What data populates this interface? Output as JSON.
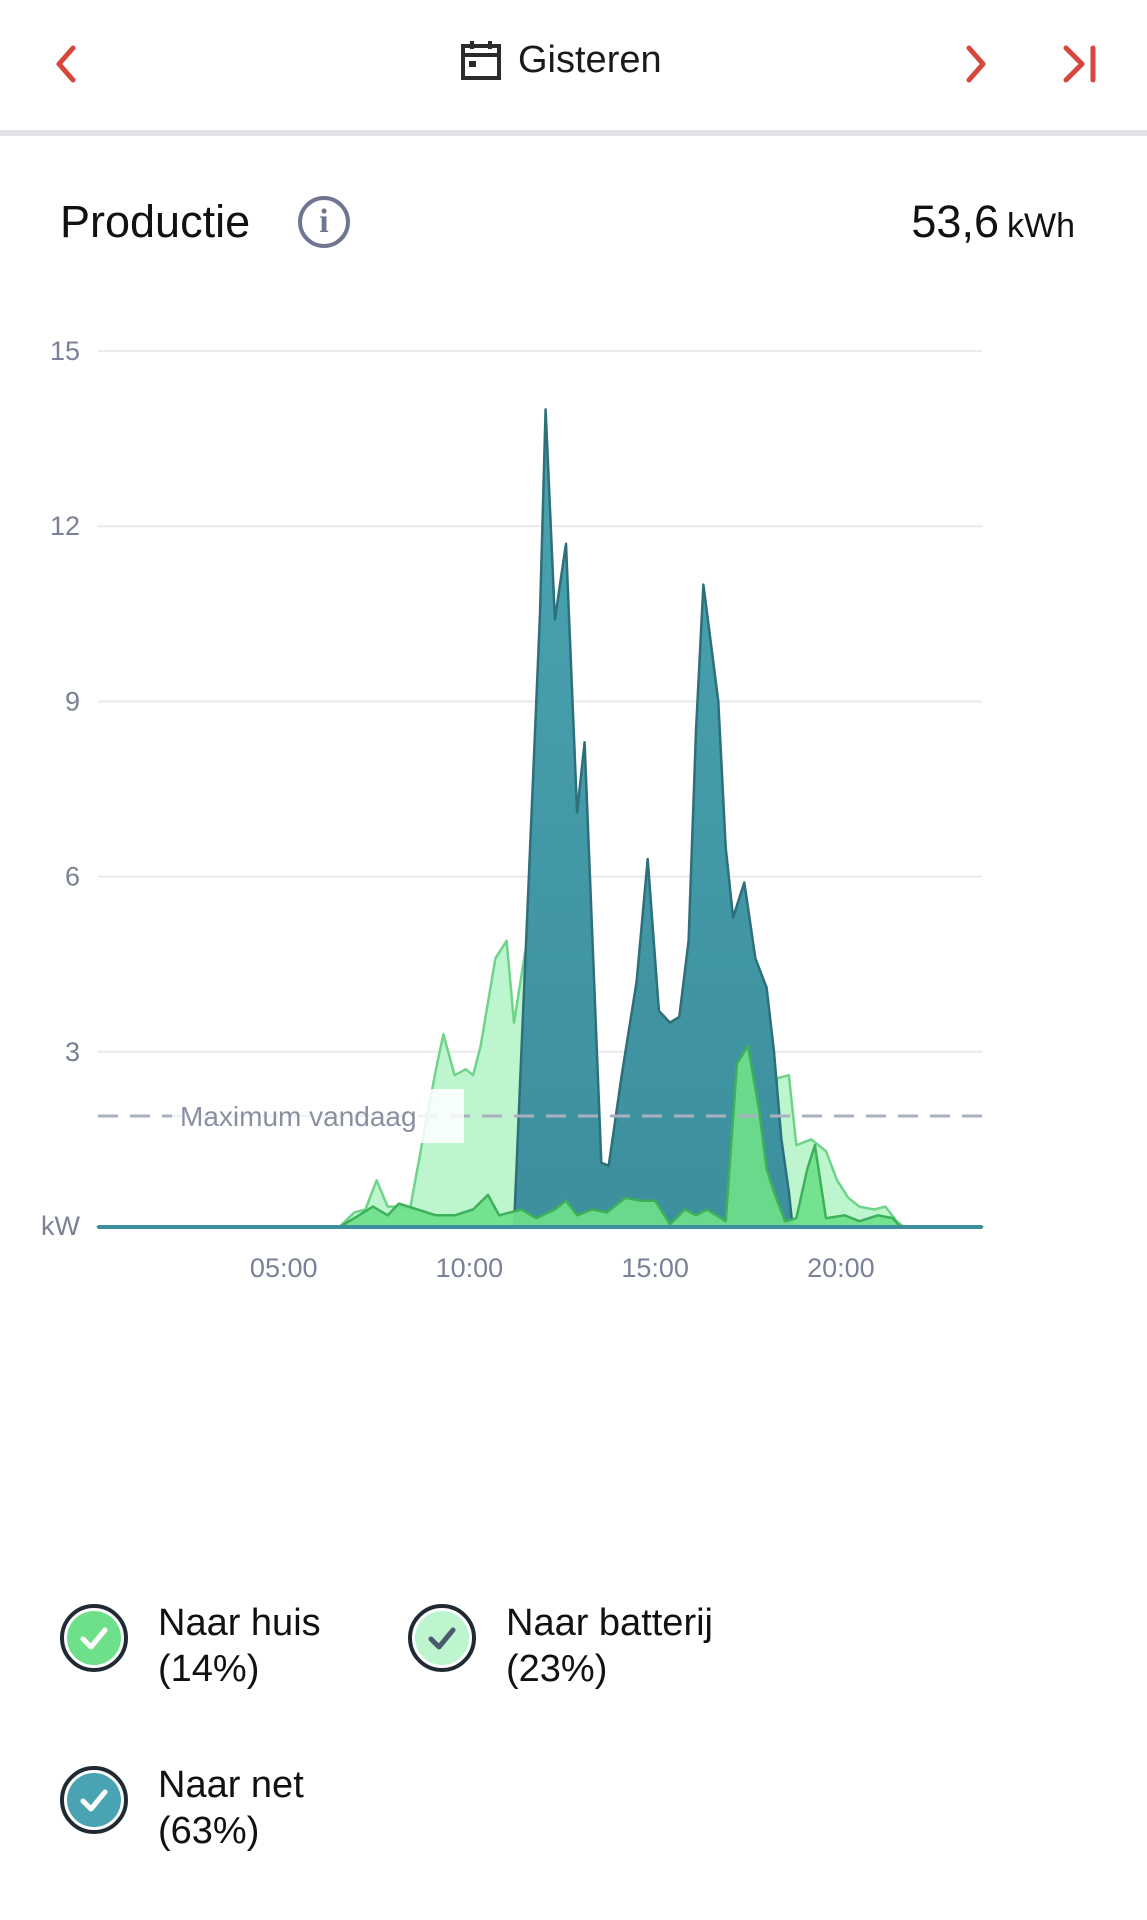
{
  "nav": {
    "date_label": "Gisteren",
    "icons": {
      "prev": "chevron-left-icon",
      "next": "chevron-right-icon",
      "last": "skip-to-end-icon",
      "calendar": "calendar-icon",
      "info": "info-icon"
    }
  },
  "header": {
    "title": "Productie",
    "info_symbol": "i",
    "total_value": "53,6",
    "total_unit": "kWh"
  },
  "colors": {
    "accent": "#d5473b",
    "grid": "#e9e9ee",
    "axis_text": "#7a8196",
    "naar_net": "#4aa3b2",
    "naar_batterij": "#bdf5cf",
    "naar_huis": "#6fe08a",
    "max_line": "#aab0bf"
  },
  "chart_data": {
    "type": "area",
    "y_unit_label": "kW",
    "ylim": [
      0,
      15
    ],
    "y_ticks": [
      15,
      12,
      9,
      6,
      3
    ],
    "x_ticks": [
      "05:00",
      "10:00",
      "15:00",
      "20:00"
    ],
    "xlim_hours": [
      0,
      23.8
    ],
    "reference_line": {
      "label": "Maximum vandaag",
      "value": 1.9
    },
    "series": [
      {
        "name": "Naar huis",
        "percent": "14%",
        "points": [
          [
            0,
            0
          ],
          [
            6.5,
            0
          ],
          [
            6.9,
            0.15
          ],
          [
            7.4,
            0.35
          ],
          [
            7.8,
            0.2
          ],
          [
            8.1,
            0.4
          ],
          [
            8.6,
            0.3
          ],
          [
            9.1,
            0.2
          ],
          [
            9.6,
            0.2
          ],
          [
            10.1,
            0.3
          ],
          [
            10.5,
            0.55
          ],
          [
            10.8,
            0.2
          ],
          [
            11.4,
            0.3
          ],
          [
            11.8,
            0.15
          ],
          [
            12.3,
            0.3
          ],
          [
            12.6,
            0.45
          ],
          [
            12.9,
            0.2
          ],
          [
            13.3,
            0.3
          ],
          [
            13.7,
            0.25
          ],
          [
            14.2,
            0.5
          ],
          [
            14.6,
            0.45
          ],
          [
            15.0,
            0.45
          ],
          [
            15.4,
            0.05
          ],
          [
            15.8,
            0.3
          ],
          [
            16.1,
            0.2
          ],
          [
            16.4,
            0.3
          ],
          [
            16.9,
            0.1
          ],
          [
            17.2,
            2.8
          ],
          [
            17.5,
            3.1
          ],
          [
            17.8,
            2.0
          ],
          [
            18.0,
            1.0
          ],
          [
            18.2,
            0.6
          ],
          [
            18.5,
            0.1
          ],
          [
            18.8,
            0.15
          ],
          [
            19.1,
            1.0
          ],
          [
            19.3,
            1.4
          ],
          [
            19.6,
            0.15
          ],
          [
            20.1,
            0.2
          ],
          [
            20.5,
            0.1
          ],
          [
            21.0,
            0.2
          ],
          [
            21.4,
            0.15
          ],
          [
            21.6,
            0
          ],
          [
            23.8,
            0
          ]
        ]
      },
      {
        "name": "Naar batterij",
        "percent": "23%",
        "points": [
          [
            0,
            0
          ],
          [
            6.5,
            0
          ],
          [
            6.9,
            0.25
          ],
          [
            7.2,
            0.3
          ],
          [
            7.5,
            0.8
          ],
          [
            7.8,
            0.35
          ],
          [
            8.1,
            0.35
          ],
          [
            8.4,
            0.3
          ],
          [
            8.8,
            1.7
          ],
          [
            9.1,
            2.7
          ],
          [
            9.3,
            3.3
          ],
          [
            9.6,
            2.6
          ],
          [
            9.9,
            2.7
          ],
          [
            10.1,
            2.6
          ],
          [
            10.3,
            3.1
          ],
          [
            10.7,
            4.6
          ],
          [
            11.0,
            4.9
          ],
          [
            11.2,
            3.5
          ],
          [
            11.5,
            4.7
          ],
          [
            11.8,
            5.4
          ],
          [
            11.9,
            0
          ],
          [
            17.9,
            0
          ],
          [
            18.0,
            1.8
          ],
          [
            18.3,
            2.55
          ],
          [
            18.6,
            2.6
          ],
          [
            18.8,
            1.4
          ],
          [
            19.2,
            1.5
          ],
          [
            19.6,
            1.3
          ],
          [
            19.9,
            0.8
          ],
          [
            20.2,
            0.5
          ],
          [
            20.5,
            0.35
          ],
          [
            20.9,
            0.3
          ],
          [
            21.2,
            0.35
          ],
          [
            21.5,
            0.1
          ],
          [
            21.7,
            0
          ],
          [
            23.8,
            0
          ]
        ]
      },
      {
        "name": "Naar net",
        "percent": "63%",
        "points": [
          [
            0,
            0
          ],
          [
            11.2,
            0
          ],
          [
            11.4,
            3.0
          ],
          [
            11.7,
            7.5
          ],
          [
            11.9,
            10.5
          ],
          [
            12.05,
            14.0
          ],
          [
            12.3,
            10.4
          ],
          [
            12.6,
            11.7
          ],
          [
            12.9,
            7.1
          ],
          [
            13.1,
            8.3
          ],
          [
            13.35,
            4.3
          ],
          [
            13.55,
            1.1
          ],
          [
            13.75,
            1.05
          ],
          [
            14.1,
            2.6
          ],
          [
            14.5,
            4.2
          ],
          [
            14.8,
            6.3
          ],
          [
            15.1,
            3.7
          ],
          [
            15.4,
            3.5
          ],
          [
            15.65,
            3.6
          ],
          [
            15.9,
            4.9
          ],
          [
            16.1,
            8.5
          ],
          [
            16.3,
            11.0
          ],
          [
            16.7,
            9.0
          ],
          [
            16.9,
            6.5
          ],
          [
            17.1,
            5.3
          ],
          [
            17.4,
            5.9
          ],
          [
            17.7,
            4.6
          ],
          [
            18.0,
            4.1
          ],
          [
            18.2,
            3.0
          ],
          [
            18.4,
            1.5
          ],
          [
            18.6,
            0.6
          ],
          [
            18.7,
            0
          ],
          [
            23.8,
            0
          ]
        ]
      }
    ]
  },
  "legend": [
    {
      "label": "Naar huis",
      "percent": "(14%)"
    },
    {
      "label": "Naar batterij",
      "percent": "(23%)"
    },
    {
      "label": "Naar net",
      "percent": "(63%)"
    }
  ]
}
